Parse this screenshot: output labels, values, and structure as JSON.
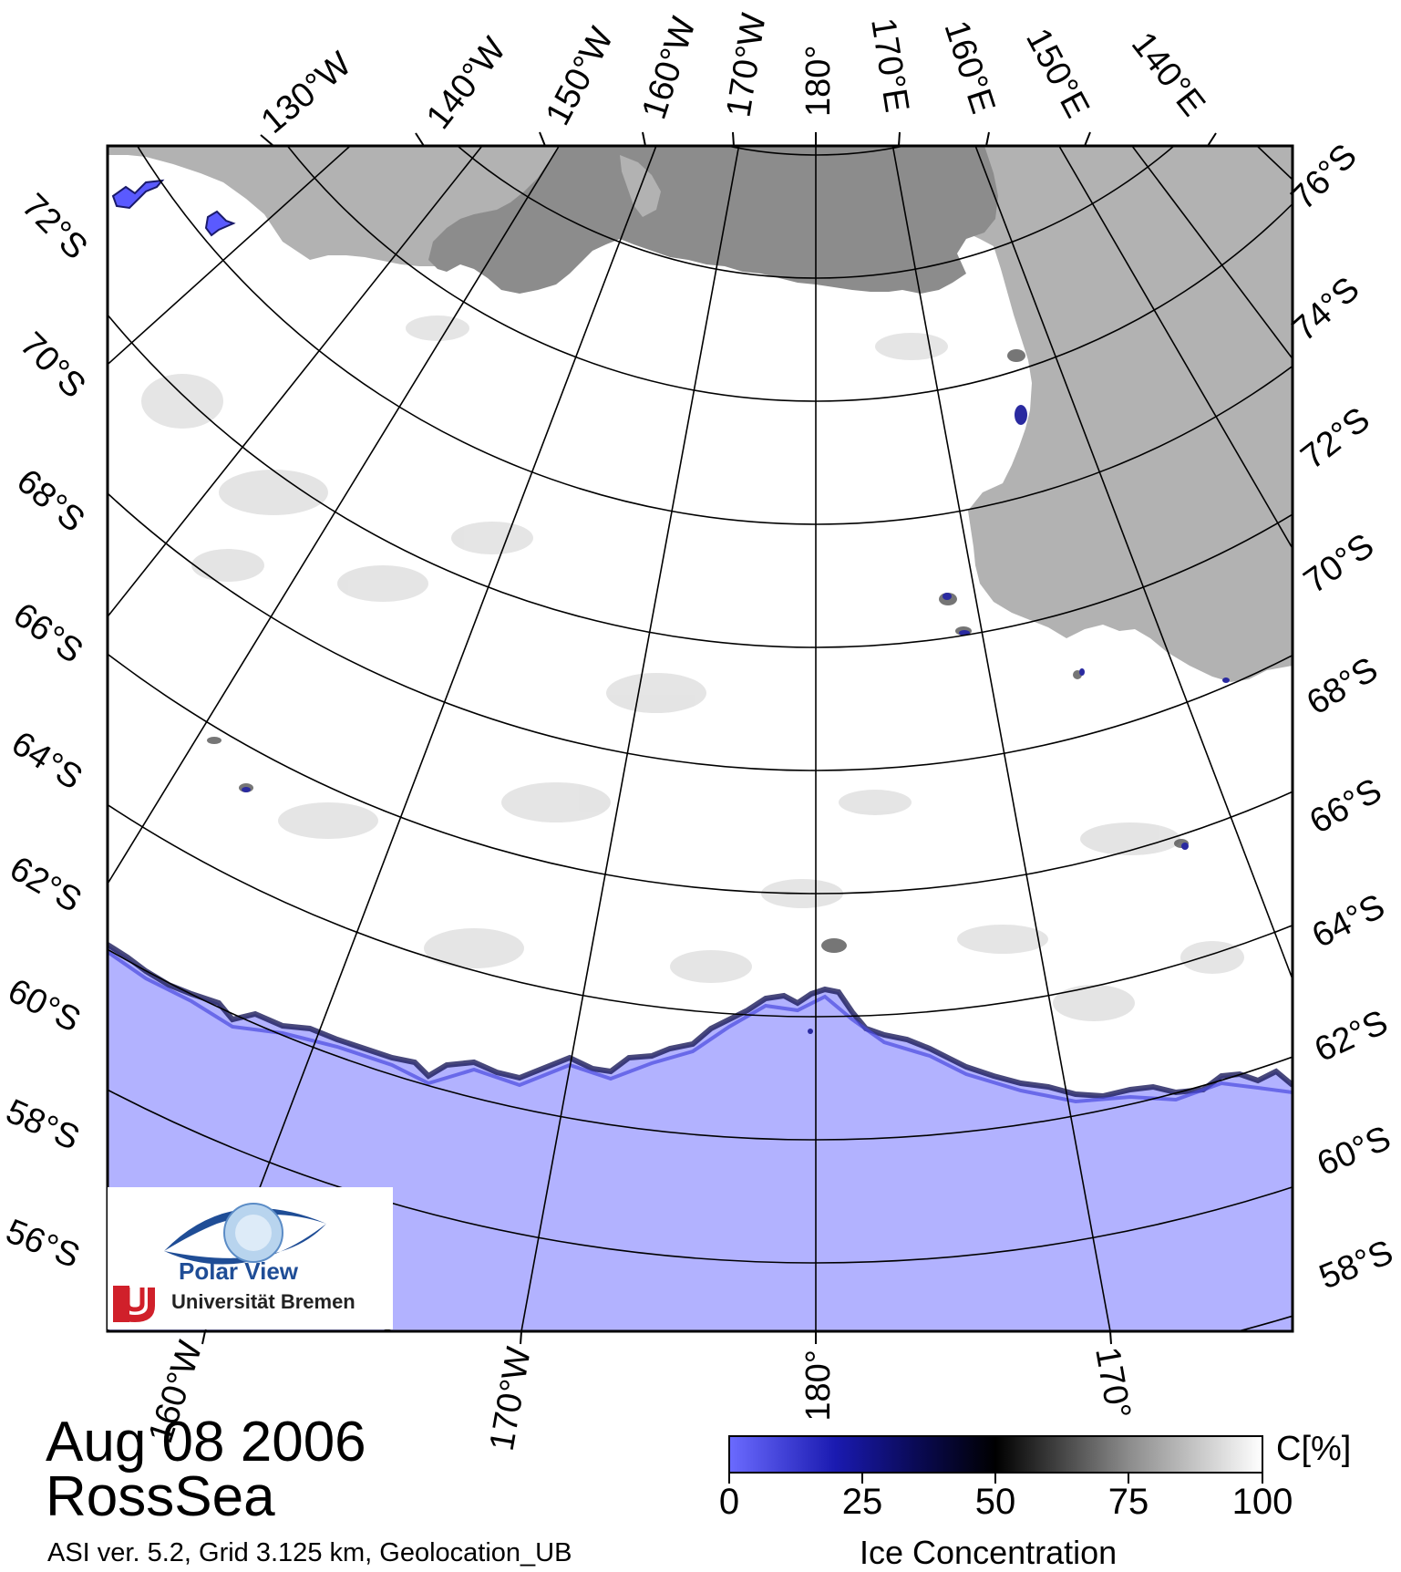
{
  "title": {
    "date": "Aug 08 2006",
    "region": "RossSea",
    "metadata": "ASI ver. 5.2,  Grid 3.125 km, Geolocation_UB"
  },
  "logo": {
    "name": "Polar View",
    "institution": "Universität Bremen"
  },
  "colorbar": {
    "title": "Ice Concentration",
    "unit": "C[%]",
    "ticks": [
      "0",
      "25",
      "50",
      "75",
      "100"
    ],
    "colors": [
      "#5a5aff",
      "#0a0a8c",
      "#000000",
      "#888888",
      "#ffffff"
    ]
  },
  "labels": {
    "top_longitudes": [
      "130°W",
      "140°W",
      "150°W",
      "160°W",
      "170°W",
      "180°",
      "170°E",
      "160°E",
      "150°E",
      "140°E"
    ],
    "bottom_longitudes": [
      "160°W",
      "170°W",
      "180°",
      "170°"
    ],
    "left_latitudes": [
      "72°S",
      "70°S",
      "68°S",
      "66°S",
      "64°S",
      "62°S",
      "60°S",
      "58°S",
      "56°S"
    ],
    "right_latitudes": [
      "76°S",
      "74°S",
      "72°S",
      "70°S",
      "68°S",
      "66°S",
      "64°S",
      "62°S",
      "60°S",
      "58°S"
    ]
  },
  "colors": {
    "ocean": "#b2b2ff",
    "land": "#b2b2b2",
    "ice_shelf": "#8c8c8c",
    "sea_ice": "#ffffff",
    "coast_outline": "#3a3ad6"
  }
}
